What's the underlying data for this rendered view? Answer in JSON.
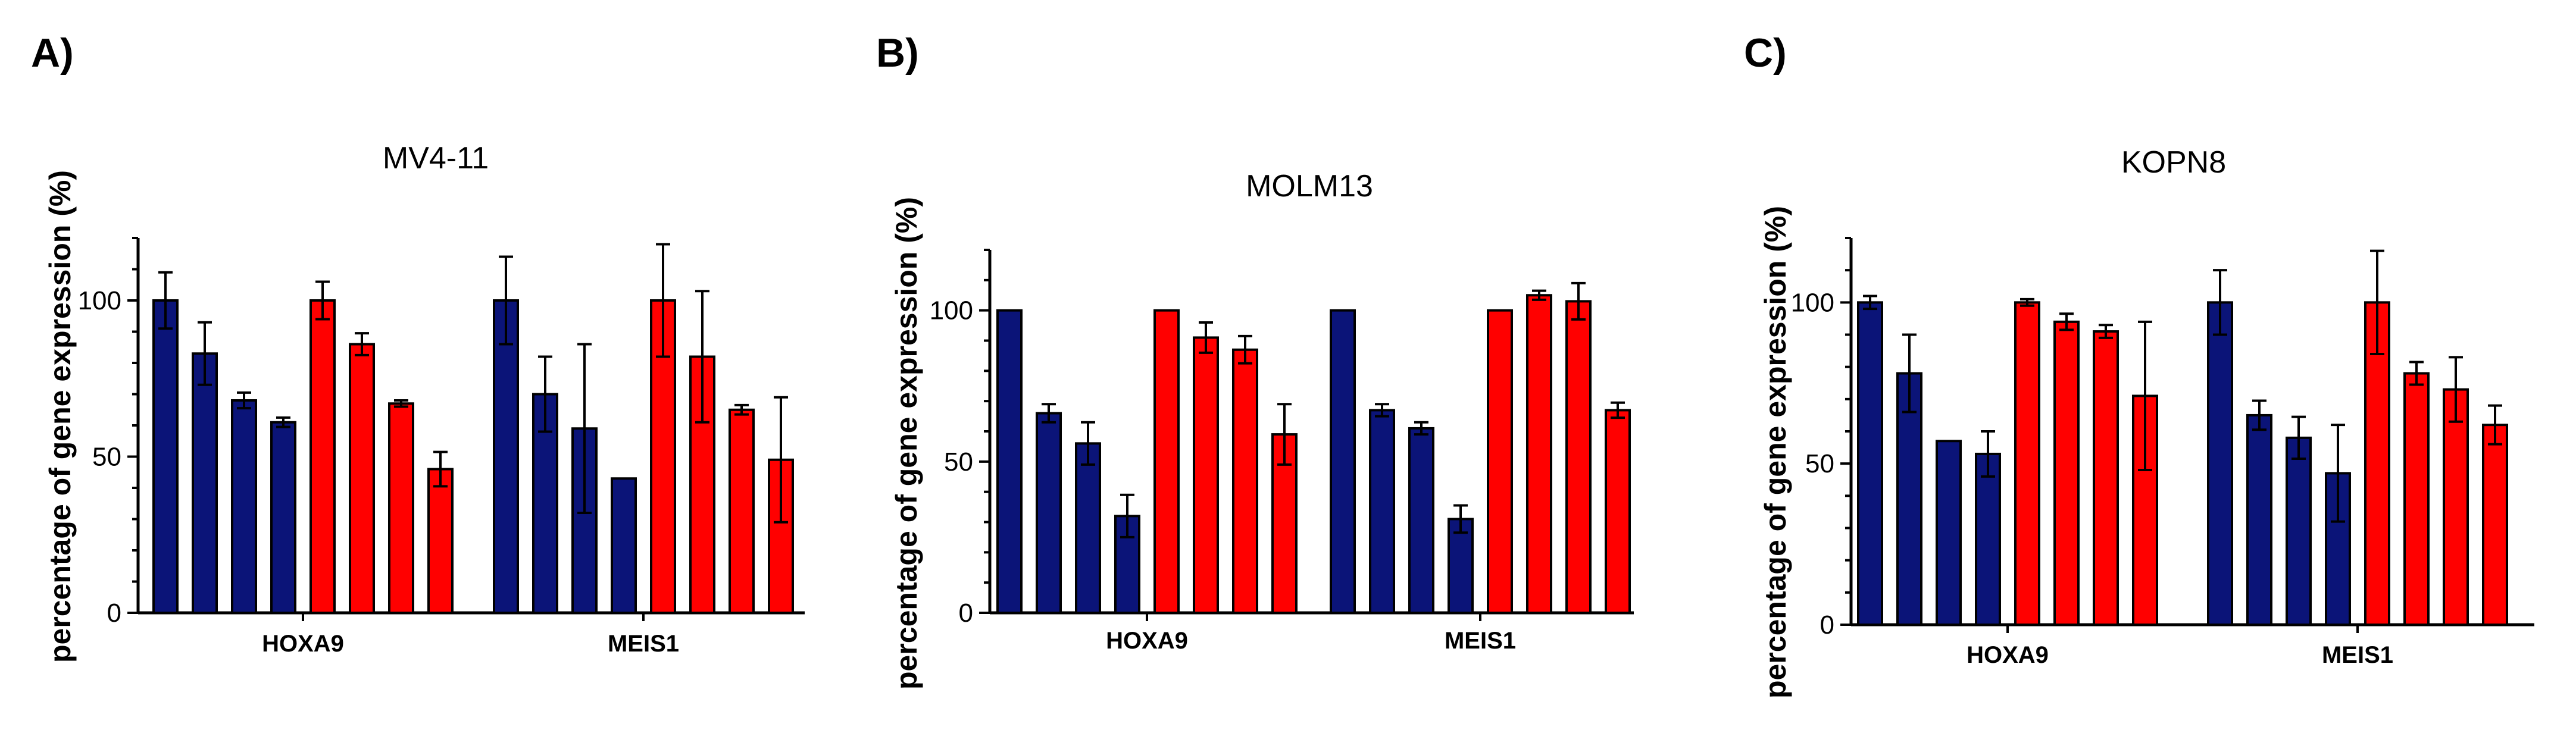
{
  "colors": {
    "blue": "#0b1478",
    "red": "#ff0000"
  },
  "chart_data": [
    {
      "type": "bar",
      "panel": "A)",
      "title": "MV4-11",
      "ylabel": "percentage of gene expression (%)",
      "ylim": [
        0,
        120
      ],
      "yticks": [
        0,
        50,
        100
      ],
      "categories": [
        "HOXA9",
        "MEIS1"
      ],
      "bar_colors": [
        "blue",
        "blue",
        "blue",
        "blue",
        "red",
        "red",
        "red",
        "red"
      ],
      "values": [
        [
          100,
          83,
          68,
          61,
          100,
          86,
          67,
          46
        ],
        [
          100,
          70,
          59,
          43,
          100,
          82,
          65,
          49
        ]
      ],
      "errors": [
        [
          9,
          10,
          2.5,
          1.5,
          6,
          3.5,
          1,
          5.5
        ],
        [
          14,
          12,
          27,
          0,
          18,
          21,
          1.5,
          20
        ]
      ]
    },
    {
      "type": "bar",
      "panel": "B)",
      "title": "MOLM13",
      "ylabel": "percentage of gene expression (%)",
      "ylim": [
        0,
        120
      ],
      "yticks": [
        0,
        50,
        100
      ],
      "categories": [
        "HOXA9",
        "MEIS1"
      ],
      "bar_colors": [
        "blue",
        "blue",
        "blue",
        "blue",
        "red",
        "red",
        "red",
        "red"
      ],
      "values": [
        [
          100,
          66,
          56,
          32,
          100,
          91,
          87,
          59
        ],
        [
          100,
          67,
          61,
          31,
          100,
          105,
          103,
          67
        ]
      ],
      "errors": [
        [
          0,
          3,
          7,
          7,
          0,
          5,
          4.5,
          10
        ],
        [
          0,
          2,
          2,
          4.5,
          0,
          1.5,
          6,
          2.5
        ]
      ]
    },
    {
      "type": "bar",
      "panel": "C)",
      "title": "KOPN8",
      "ylabel": "percentage of gene expression (%)",
      "ylim": [
        0,
        120
      ],
      "yticks": [
        0,
        50,
        100
      ],
      "categories": [
        "HOXA9",
        "MEIS1"
      ],
      "bar_colors": [
        "blue",
        "blue",
        "blue",
        "blue",
        "red",
        "red",
        "red",
        "red"
      ],
      "values": [
        [
          100,
          78,
          57,
          53,
          100,
          94,
          91,
          71
        ],
        [
          100,
          65,
          58,
          47,
          100,
          78,
          73,
          62
        ]
      ],
      "errors": [
        [
          2,
          12,
          0,
          7,
          1,
          2.5,
          2,
          23
        ],
        [
          10,
          4.5,
          6.5,
          15,
          16,
          3.5,
          10,
          6
        ]
      ]
    }
  ]
}
